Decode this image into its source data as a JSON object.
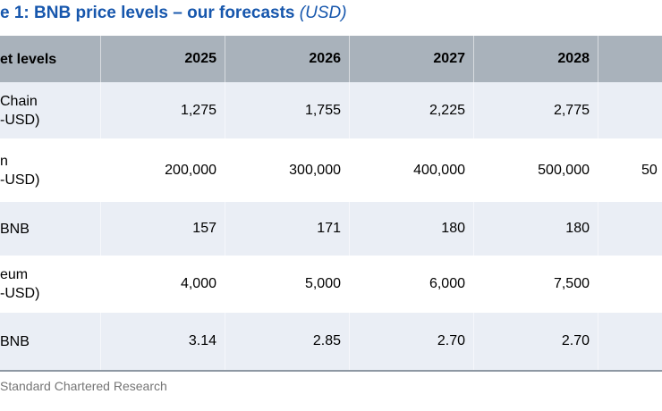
{
  "title": {
    "text": "e 1: BNB price levels – our forecasts",
    "unit": "(USD)"
  },
  "colors": {
    "title_blue": "#1757ad",
    "header_bg": "#a9b2bb",
    "row_tint": "#eaeef5",
    "bottom_border": "#8e98a3",
    "source_grey": "#757575"
  },
  "table": {
    "header_label": "et levels",
    "years": [
      "2025",
      "2026",
      "2027",
      "2028",
      ""
    ],
    "rows": [
      {
        "label_lines": [
          "Chain",
          "-USD)"
        ],
        "values": [
          "1,275",
          "1,755",
          "2,225",
          "2,775",
          ""
        ]
      },
      {
        "label_lines": [
          "n",
          "-USD)"
        ],
        "values": [
          "200,000",
          "300,000",
          "400,000",
          "500,000",
          "50"
        ]
      },
      {
        "label_lines": [
          "BNB"
        ],
        "values": [
          "157",
          "171",
          "180",
          "180",
          ""
        ]
      },
      {
        "label_lines": [
          "eum",
          "-USD)"
        ],
        "values": [
          "4,000",
          "5,000",
          "6,000",
          "7,500",
          ""
        ]
      },
      {
        "label_lines": [
          "BNB"
        ],
        "values": [
          "3.14",
          "2.85",
          "2.70",
          "2.70",
          ""
        ]
      }
    ]
  },
  "source": "Standard Chartered Research",
  "chart_data": {
    "type": "table",
    "title": "e 1: BNB price levels – our forecasts (USD)",
    "columns": [
      "et levels",
      "2025",
      "2026",
      "2027",
      "2028"
    ],
    "rows": [
      [
        "Chain -USD)",
        "1,275",
        "1,755",
        "2,225",
        "2,775"
      ],
      [
        "n -USD)",
        "200,000",
        "300,000",
        "400,000",
        "500,000"
      ],
      [
        "BNB",
        "157",
        "171",
        "180",
        "180"
      ],
      [
        "eum -USD)",
        "4,000",
        "5,000",
        "6,000",
        "7,500"
      ],
      [
        "BNB",
        "3.14",
        "2.85",
        "2.70",
        "2.70"
      ]
    ],
    "notes": "left edge and fifth year column cropped; clipped value fragment '50' visible in Bitcoin row"
  }
}
